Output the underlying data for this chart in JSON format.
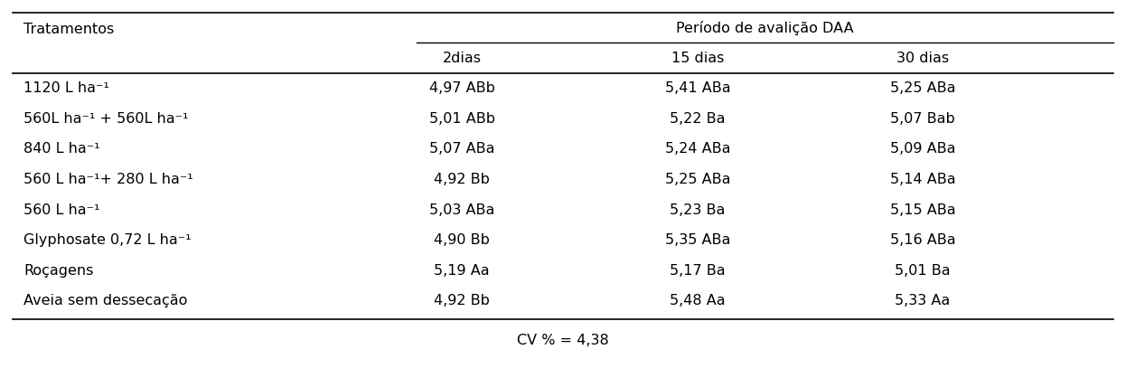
{
  "header_group": "Período de avalição DAA",
  "col_headers": [
    "Tratamentos",
    "2dias",
    "15 dias",
    "30 dias"
  ],
  "rows": [
    [
      "1120 L ha⁻¹",
      "4,97 ABb",
      "5,41 ABa",
      "5,25 ABa"
    ],
    [
      "560L ha⁻¹ + 560L ha⁻¹",
      "5,01 ABb",
      "5,22 Ba",
      "5,07 Bab"
    ],
    [
      "840 L ha⁻¹",
      "5,07 ABa",
      "5,24 ABa",
      "5,09 ABa"
    ],
    [
      "560 L ha⁻¹+ 280 L ha⁻¹",
      "4,92 Bb",
      "5,25 ABa",
      "5,14 ABa"
    ],
    [
      "560 L ha⁻¹",
      "5,03 ABa",
      "5,23 Ba",
      "5,15 ABa"
    ],
    [
      "Glyphosate 0,72 L ha⁻¹",
      "4,90 Bb",
      "5,35 ABa",
      "5,16 ABa"
    ],
    [
      "Roçagens",
      "5,19 Aa",
      "5,17 Ba",
      "5,01 Ba"
    ],
    [
      "Aveia sem dessecação",
      "4,92 Bb",
      "5,48 Aa",
      "5,33 Aa"
    ]
  ],
  "footer": "CV % = 4,38",
  "bg_color": "#ffffff",
  "text_color": "#000000",
  "fontsize": 11.5,
  "header_fontsize": 11.5
}
